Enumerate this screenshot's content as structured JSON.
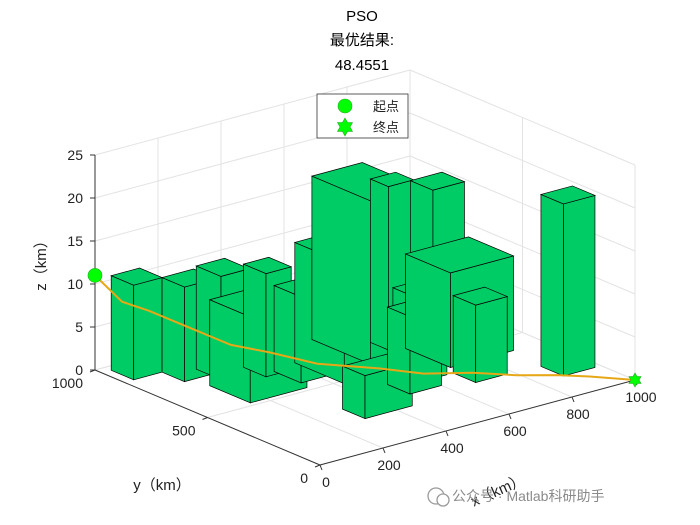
{
  "chart_data": {
    "type": "3d-bar-path",
    "title": "PSO",
    "subtitle": "最优结果:",
    "result": "48.4551",
    "xlabel": "x（km）",
    "ylabel": "y（km）",
    "zlabel": "z（km）",
    "xlim": [
      0,
      1000
    ],
    "ylim": [
      0,
      1000
    ],
    "zlim": [
      0,
      25
    ],
    "xticks": [
      "0",
      "200",
      "400",
      "600",
      "800",
      "1000"
    ],
    "yticks": [
      "0",
      "500",
      "1000"
    ],
    "zticks": [
      "0",
      "5",
      "10",
      "15",
      "20",
      "25"
    ],
    "grid": true,
    "legend_position": "top",
    "legend": [
      {
        "label": "起点",
        "marker": "circle",
        "color": "#00ff00"
      },
      {
        "label": "终点",
        "marker": "hexagram",
        "color": "#00ff00"
      }
    ],
    "building_color": "#00cc66",
    "path_color": "#e6a817",
    "start_point": {
      "x": 0,
      "y": 1000,
      "z": 11
    },
    "end_point": {
      "x": 1000,
      "y": 0,
      "z": 0
    },
    "path": [
      [
        0,
        1000,
        11
      ],
      [
        50,
        950,
        8
      ],
      [
        100,
        900,
        7
      ],
      [
        180,
        840,
        5
      ],
      [
        260,
        760,
        3
      ],
      [
        340,
        700,
        2
      ],
      [
        420,
        600,
        1
      ],
      [
        520,
        460,
        1
      ],
      [
        600,
        380,
        0.5
      ],
      [
        700,
        300,
        0.5
      ],
      [
        780,
        220,
        0.3
      ],
      [
        860,
        150,
        0.3
      ],
      [
        920,
        90,
        0.2
      ],
      [
        1000,
        0,
        0
      ]
    ],
    "buildings": [
      {
        "x": [
          30,
          120
        ],
        "y": [
          870,
          970
        ],
        "h": 11
      },
      {
        "x": [
          120,
          220
        ],
        "y": [
          770,
          870
        ],
        "h": 11
      },
      {
        "x": [
          200,
          290
        ],
        "y": [
          720,
          830
        ],
        "h": 12
      },
      {
        "x": [
          300,
          380
        ],
        "y": [
          660,
          760
        ],
        "h": 12
      },
      {
        "x": [
          150,
          330
        ],
        "y": [
          520,
          700
        ],
        "h": 10
      },
      {
        "x": [
          340,
          470
        ],
        "y": [
          560,
          680
        ],
        "h": 10
      },
      {
        "x": [
          420,
          620
        ],
        "y": [
          480,
          700
        ],
        "h": 14
      },
      {
        "x": [
          560,
          720
        ],
        "y": [
          560,
          820
        ],
        "h": 19
      },
      {
        "x": [
          660,
          740
        ],
        "y": [
          620,
          700
        ],
        "h": 19
      },
      {
        "x": [
          730,
          830
        ],
        "y": [
          520,
          620
        ],
        "h": 19
      },
      {
        "x": [
          700,
          900
        ],
        "y": [
          400,
          600
        ],
        "h": 11
      },
      {
        "x": [
          560,
          660
        ],
        "y": [
          360,
          460
        ],
        "h": 10
      },
      {
        "x": [
          500,
          600
        ],
        "y": [
          300,
          400
        ],
        "h": 9
      },
      {
        "x": [
          680,
          780
        ],
        "y": [
          260,
          360
        ],
        "h": 9
      },
      {
        "x": [
          300,
          450
        ],
        "y": [
          220,
          320
        ],
        "h": 5
      },
      {
        "x": [
          880,
          980
        ],
        "y": [
          150,
          250
        ],
        "h": 20
      }
    ]
  },
  "watermark": "公众号 · Matlab科研助手"
}
